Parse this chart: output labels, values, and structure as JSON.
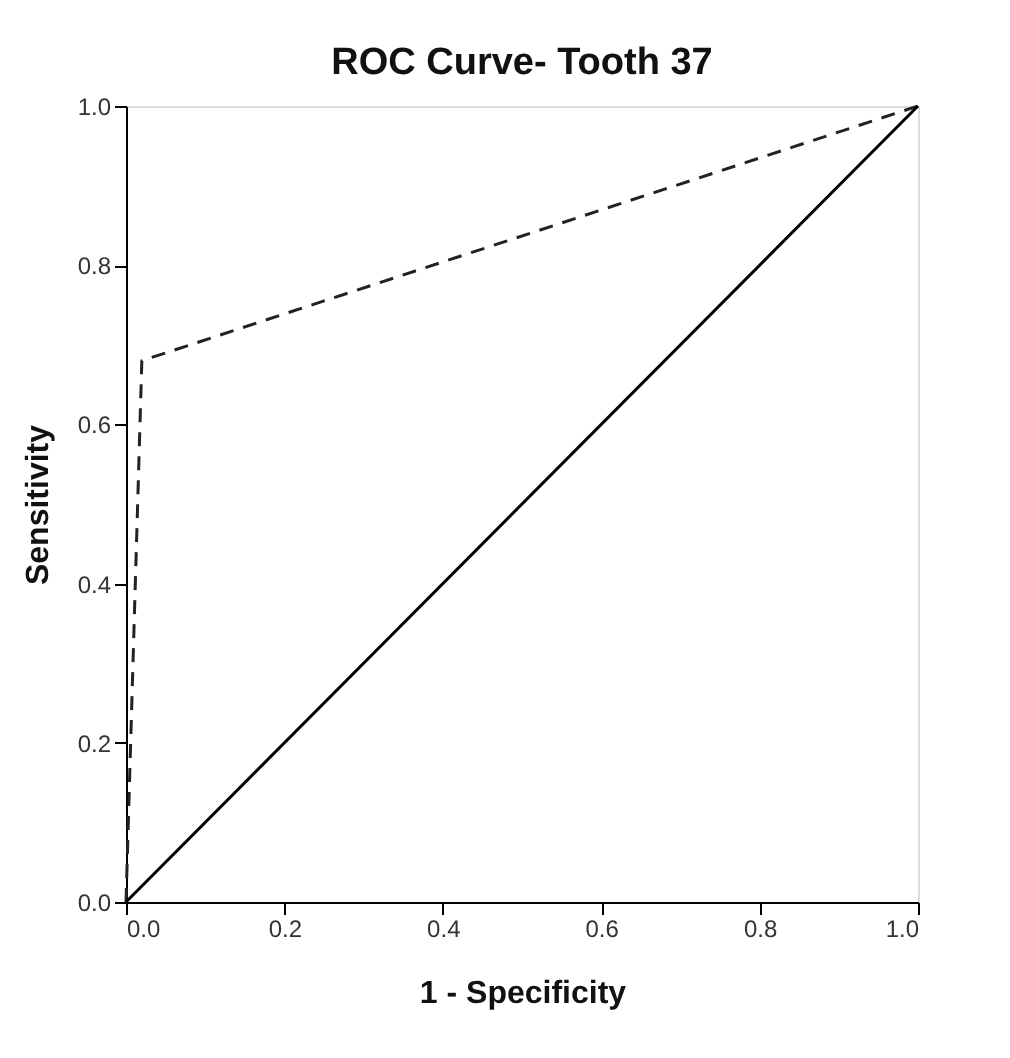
{
  "chart_data": {
    "type": "line",
    "title": "ROC Curve- Tooth 37",
    "xlabel": "1 - Specificity",
    "ylabel": "Sensitivity",
    "xlim": [
      0,
      1
    ],
    "ylim": [
      0,
      1
    ],
    "xticks": [
      {
        "value": 0,
        "label": "0.0"
      },
      0.2,
      0.4,
      0.6,
      0.8,
      {
        "value": 1,
        "label": "1.0"
      }
    ],
    "yticks": [
      {
        "value": 0,
        "label": "0.0"
      },
      0.2,
      0.4,
      0.6,
      0.8,
      {
        "value": 1,
        "label": "1.0"
      }
    ],
    "grid": false,
    "marker": "none",
    "series": [
      {
        "x": [
          0,
          0.02,
          1
        ],
        "values": [
          0,
          0.68,
          1
        ],
        "color": "#222222",
        "line_style": "dashed"
      },
      {
        "x": [
          0,
          1
        ],
        "values": [
          0,
          1
        ],
        "color": "#000000",
        "line_style": "solid"
      }
    ]
  }
}
